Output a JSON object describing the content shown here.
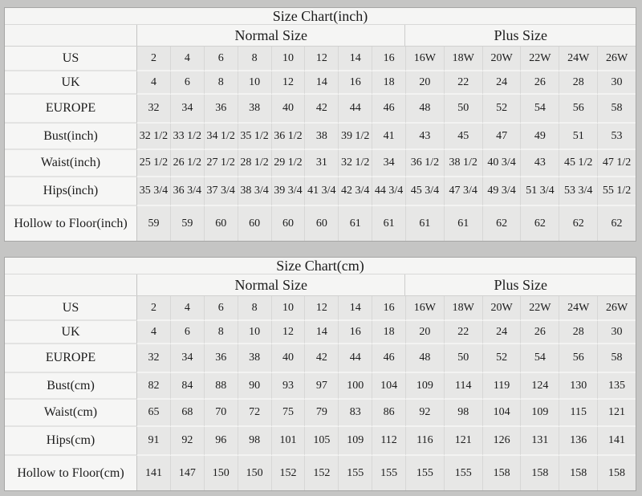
{
  "colors": {
    "page_background": "#c5c5c4",
    "panel_background": "#f5f5f4",
    "data_cell_background": "#e7e7e6",
    "border": "#c4c4c3",
    "text": "#1c1c1c"
  },
  "chart_data": [
    {
      "type": "table",
      "title": "Size Chart(inch)",
      "group_headers": [
        "Normal Size",
        "Plus Size"
      ],
      "normal_columns": 8,
      "plus_columns": 6,
      "rows": [
        {
          "label": "US",
          "normal": [
            "2",
            "4",
            "6",
            "8",
            "10",
            "12",
            "14",
            "16"
          ],
          "plus": [
            "16W",
            "18W",
            "20W",
            "22W",
            "24W",
            "26W"
          ]
        },
        {
          "label": "UK",
          "normal": [
            "4",
            "6",
            "8",
            "10",
            "12",
            "14",
            "16",
            "18"
          ],
          "plus": [
            "20",
            "22",
            "24",
            "26",
            "28",
            "30"
          ]
        },
        {
          "label": "EUROPE",
          "normal": [
            "32",
            "34",
            "36",
            "38",
            "40",
            "42",
            "44",
            "46"
          ],
          "plus": [
            "48",
            "50",
            "52",
            "54",
            "56",
            "58"
          ]
        },
        {
          "label": "Bust(inch)",
          "normal": [
            "32 1/2",
            "33 1/2",
            "34 1/2",
            "35 1/2",
            "36 1/2",
            "38",
            "39 1/2",
            "41"
          ],
          "plus": [
            "43",
            "45",
            "47",
            "49",
            "51",
            "53"
          ]
        },
        {
          "label": "Waist(inch)",
          "normal": [
            "25 1/2",
            "26 1/2",
            "27 1/2",
            "28 1/2",
            "29 1/2",
            "31",
            "32 1/2",
            "34"
          ],
          "plus": [
            "36 1/2",
            "38 1/2",
            "40 3/4",
            "43",
            "45 1/2",
            "47 1/2"
          ]
        },
        {
          "label": "Hips(inch)",
          "normal": [
            "35 3/4",
            "36 3/4",
            "37 3/4",
            "38 3/4",
            "39 3/4",
            "41 3/4",
            "42 3/4",
            "44 3/4"
          ],
          "plus": [
            "45 3/4",
            "47 3/4",
            "49 3/4",
            "51 3/4",
            "53 3/4",
            "55 1/2"
          ]
        },
        {
          "label": "Hollow to Floor(inch)",
          "normal": [
            "59",
            "59",
            "60",
            "60",
            "60",
            "60",
            "61",
            "61"
          ],
          "plus": [
            "61",
            "61",
            "62",
            "62",
            "62",
            "62"
          ]
        }
      ]
    },
    {
      "type": "table",
      "title": "Size Chart(cm)",
      "group_headers": [
        "Normal Size",
        "Plus Size"
      ],
      "normal_columns": 8,
      "plus_columns": 6,
      "rows": [
        {
          "label": "US",
          "normal": [
            "2",
            "4",
            "6",
            "8",
            "10",
            "12",
            "14",
            "16"
          ],
          "plus": [
            "16W",
            "18W",
            "20W",
            "22W",
            "24W",
            "26W"
          ]
        },
        {
          "label": "UK",
          "normal": [
            "4",
            "6",
            "8",
            "10",
            "12",
            "14",
            "16",
            "18"
          ],
          "plus": [
            "20",
            "22",
            "24",
            "26",
            "28",
            "30"
          ]
        },
        {
          "label": "EUROPE",
          "normal": [
            "32",
            "34",
            "36",
            "38",
            "40",
            "42",
            "44",
            "46"
          ],
          "plus": [
            "48",
            "50",
            "52",
            "54",
            "56",
            "58"
          ]
        },
        {
          "label": "Bust(cm)",
          "normal": [
            "82",
            "84",
            "88",
            "90",
            "93",
            "97",
            "100",
            "104"
          ],
          "plus": [
            "109",
            "114",
            "119",
            "124",
            "130",
            "135"
          ]
        },
        {
          "label": "Waist(cm)",
          "normal": [
            "65",
            "68",
            "70",
            "72",
            "75",
            "79",
            "83",
            "86"
          ],
          "plus": [
            "92",
            "98",
            "104",
            "109",
            "115",
            "121"
          ]
        },
        {
          "label": "Hips(cm)",
          "normal": [
            "91",
            "92",
            "96",
            "98",
            "101",
            "105",
            "109",
            "112"
          ],
          "plus": [
            "116",
            "121",
            "126",
            "131",
            "136",
            "141"
          ]
        },
        {
          "label": "Hollow to Floor(cm)",
          "normal": [
            "141",
            "147",
            "150",
            "150",
            "152",
            "152",
            "155",
            "155"
          ],
          "plus": [
            "155",
            "155",
            "158",
            "158",
            "158",
            "158"
          ]
        }
      ]
    }
  ]
}
